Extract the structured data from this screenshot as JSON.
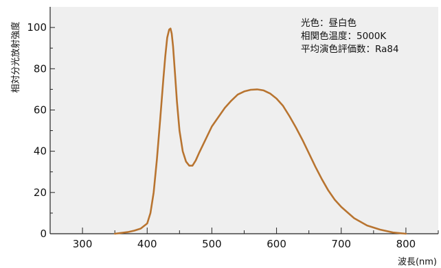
{
  "chart_data": {
    "type": "line",
    "xlabel": "波長(nm)",
    "ylabel": "相対分光放射強度",
    "xlim": [
      250,
      850
    ],
    "ylim": [
      0,
      110
    ],
    "x_ticks": [
      300,
      400,
      500,
      600,
      700,
      800
    ],
    "y_ticks": [
      0,
      20,
      40,
      60,
      80,
      100
    ],
    "grid": false,
    "background": "#efefef",
    "line_color": "#b87430",
    "annotations": [
      "光色：昼白色",
      "相関色温度：5000K",
      "平均演色評価数：Ra84"
    ],
    "series": [
      {
        "x": [
          350,
          360,
          370,
          380,
          390,
          400,
          405,
          410,
          415,
          420,
          425,
          428,
          431,
          434,
          436,
          438,
          440,
          443,
          446,
          450,
          455,
          460,
          465,
          470,
          475,
          480,
          490,
          500,
          510,
          520,
          530,
          540,
          550,
          560,
          570,
          580,
          590,
          600,
          610,
          620,
          630,
          640,
          650,
          660,
          670,
          680,
          690,
          700,
          720,
          740,
          760,
          780,
          800
        ],
        "y": [
          0,
          0.4,
          0.8,
          1.5,
          2.5,
          5,
          10,
          20,
          36,
          55,
          75,
          86,
          95,
          99,
          99.5,
          97,
          91,
          78,
          64,
          50,
          40,
          35,
          33,
          33,
          35.5,
          39,
          45.5,
          52,
          56.5,
          61,
          64.5,
          67.5,
          69,
          69.8,
          70,
          69.5,
          68,
          65.5,
          62,
          57,
          51.5,
          45.5,
          39,
          32.5,
          26.5,
          21,
          16.5,
          13,
          7.5,
          4,
          2,
          0.6,
          0
        ]
      }
    ]
  }
}
